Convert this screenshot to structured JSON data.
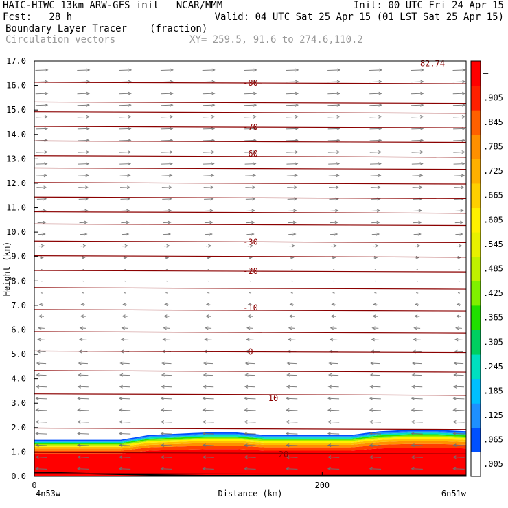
{
  "header": {
    "line1_left": "HAIC-HIWC 13km ARW-GFS init   NCAR/MMM",
    "line1_right": "Init: 00 UTC Fri 24 Apr 15",
    "line2_left": "Fcst:   28 h",
    "line2_right": "Valid: 04 UTC Sat 25 Apr 15 (01 LST Sat 25 Apr 15)",
    "line3_left": "Boundary Layer Tracer",
    "line3_mid": "(fraction)",
    "line4_left": "Circulation vectors",
    "line4_mid": "XY= 259.5, 91.6 to 274.6,110.2"
  },
  "chart_data": {
    "type": "heatmap",
    "title": "Boundary Layer Tracer",
    "units": "(fraction)",
    "xlabel": "Distance (km)",
    "ylabel": "Height (km)",
    "x_range": [
      0,
      300
    ],
    "y_range": [
      0,
      17
    ],
    "x_ticks": [
      {
        "value": 0,
        "label": "0"
      },
      {
        "value": 200,
        "label": "200"
      }
    ],
    "x_endpoint_labels": {
      "left": "4n53w",
      "right": "6n51w"
    },
    "y_ticks": [
      "0.0",
      "1.0",
      "2.0",
      "3.0",
      "4.0",
      "5.0",
      "6.0",
      "7.0",
      "8.0",
      "9.0",
      "10.0",
      "11.0",
      "12.0",
      "13.0",
      "14.0",
      "15.0",
      "16.0",
      "17.0"
    ],
    "colorbar": {
      "labels": [
        ".005",
        ".065",
        ".125",
        ".185",
        ".245",
        ".305",
        ".365",
        ".425",
        ".485",
        ".545",
        ".605",
        ".665",
        ".725",
        ".785",
        ".845",
        ".905",
        "–"
      ],
      "colors": [
        "#ffffff",
        "#0050ff",
        "#1e90ff",
        "#00c0ff",
        "#00e0c0",
        "#00d060",
        "#20e000",
        "#80f000",
        "#c0f000",
        "#e8f000",
        "#fff000",
        "#ffd000",
        "#ffb000",
        "#ff9000",
        "#ff6000",
        "#ff2000",
        "#ff0000"
      ]
    },
    "tracer_top_km": {
      "x": [
        0,
        20,
        40,
        60,
        80,
        100,
        120,
        140,
        160,
        180,
        200,
        220,
        240,
        260,
        280,
        300
      ],
      "y": [
        1.5,
        1.5,
        1.5,
        1.5,
        1.7,
        1.75,
        1.8,
        1.8,
        1.7,
        1.7,
        1.7,
        1.7,
        1.85,
        1.9,
        1.9,
        1.85
      ]
    },
    "contour_label_height_km": [
      {
        "label": "20",
        "height": 0.9
      },
      {
        "label": "10",
        "height": 3.2
      },
      {
        "label": "0",
        "height": 5.1
      },
      {
        "label": "-10",
        "height": 6.9
      },
      {
        "label": "-20",
        "height": 8.4
      },
      {
        "label": "-30",
        "height": 9.6
      },
      {
        "label": "-60",
        "height": 13.2
      },
      {
        "label": "-70",
        "height": 14.3
      },
      {
        "label": "-80",
        "height": 16.1
      },
      {
        "label": "82.74",
        "height": 16.9
      }
    ],
    "isotherm_heights_km": [
      0.1,
      0.95,
      1.95,
      3.35,
      4.3,
      5.1,
      5.9,
      6.8,
      7.7,
      8.4,
      9.0,
      9.6,
      10.3,
      10.8,
      11.4,
      12.0,
      12.6,
      13.1,
      13.7,
      14.3,
      14.9,
      15.3,
      16.1
    ],
    "wind_vectors": {
      "description_levels": "eastward aloft, westward below about 8 km",
      "u_by_level": [
        {
          "height": 16.7,
          "u": 1
        },
        {
          "height": 13.0,
          "u": 0.9
        },
        {
          "height": 10.0,
          "u": 0.6
        },
        {
          "height": 8.5,
          "u": 0.1
        },
        {
          "height": 7.0,
          "u": -0.3
        },
        {
          "height": 5.0,
          "u": -0.7
        },
        {
          "height": 3.0,
          "u": -0.9
        },
        {
          "height": 1.0,
          "u": -0.9
        }
      ]
    }
  }
}
